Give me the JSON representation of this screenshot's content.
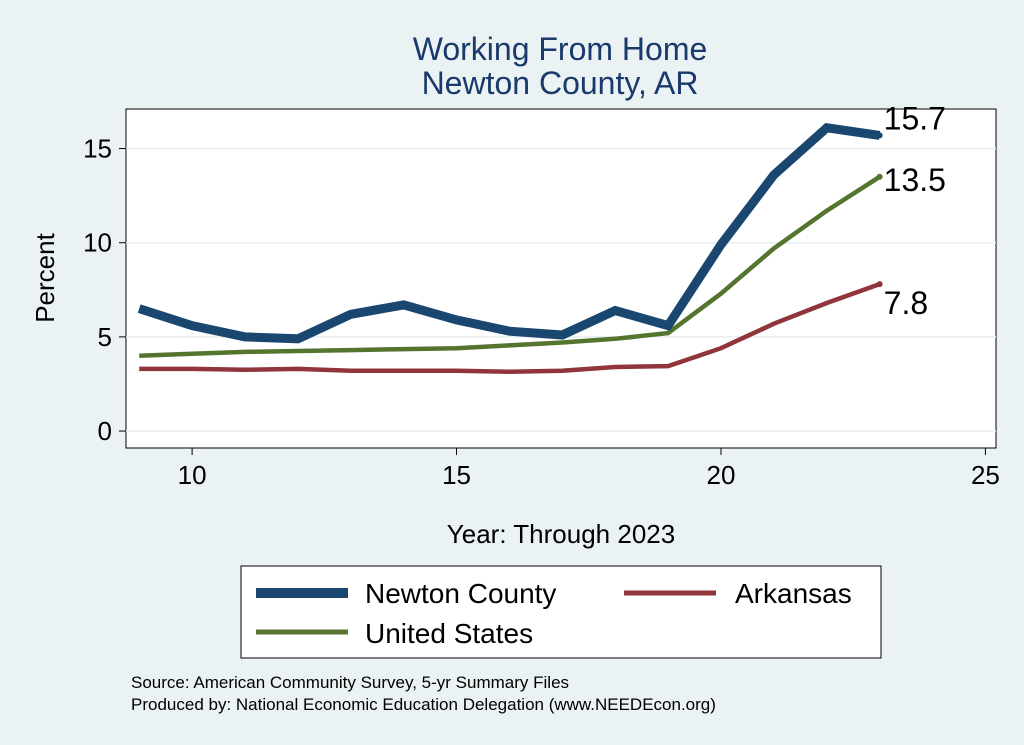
{
  "chart_data": {
    "type": "line",
    "title": [
      "Working From Home",
      "Newton County, AR"
    ],
    "xlabel": "Year: Through 2023",
    "ylabel": "Percent",
    "xlim": [
      8.75,
      25.2
    ],
    "ylim": [
      -0.9,
      17.1
    ],
    "xticks": [
      10,
      15,
      20,
      25
    ],
    "yticks": [
      0,
      5,
      10,
      15
    ],
    "grid": true,
    "legend_position": "bottom",
    "series": [
      {
        "name": "Newton County",
        "color": "#1a476f",
        "x": [
          9,
          10,
          11,
          12,
          13,
          14,
          15,
          16,
          17,
          18,
          19,
          20,
          21,
          22,
          23
        ],
        "y": [
          6.5,
          5.6,
          5.0,
          4.9,
          6.2,
          6.7,
          5.9,
          5.3,
          5.1,
          6.4,
          5.6,
          9.9,
          13.6,
          16.1,
          15.7
        ],
        "end_label": "15.7"
      },
      {
        "name": "Arkansas",
        "color": "#90353b",
        "x": [
          9,
          10,
          11,
          12,
          13,
          14,
          15,
          16,
          17,
          18,
          19,
          20,
          21,
          22,
          23
        ],
        "y": [
          3.3,
          3.3,
          3.25,
          3.3,
          3.2,
          3.2,
          3.2,
          3.15,
          3.2,
          3.4,
          3.45,
          4.4,
          5.7,
          6.8,
          7.8
        ],
        "end_label": "7.8"
      },
      {
        "name": "United States",
        "color": "#55752f",
        "x": [
          9,
          10,
          11,
          12,
          13,
          14,
          15,
          16,
          17,
          18,
          19,
          20,
          21,
          22,
          23
        ],
        "y": [
          4.0,
          4.1,
          4.2,
          4.25,
          4.3,
          4.35,
          4.4,
          4.55,
          4.7,
          4.9,
          5.2,
          7.3,
          9.7,
          11.7,
          13.5
        ],
        "end_label": "13.5"
      }
    ],
    "notes": [
      "Source: American Community Survey, 5-yr Summary Files",
      "Produced by: National Economic Education Delegation (www.NEEDEcon.org)"
    ]
  }
}
